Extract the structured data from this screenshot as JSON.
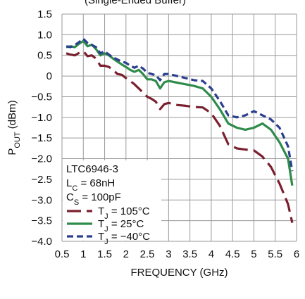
{
  "chart_data": {
    "type": "line",
    "title_partial": "(Single-Ended Buffer)",
    "xlabel": "FREQUENCY (GHz)",
    "ylabel": {
      "main": "P",
      "sub": "OUT",
      "rest": " (dBm)"
    },
    "xlim": [
      0.5,
      6.0
    ],
    "ylim": [
      -4.0,
      1.5
    ],
    "x_ticks": [
      "0.5",
      "1",
      "1.5",
      "2",
      "2.5",
      "3",
      "3.5",
      "4",
      "4.5",
      "5",
      "5.5",
      "6"
    ],
    "y_ticks": [
      "1.5",
      "1.0",
      "0.5",
      "0",
      "−0.5",
      "−1.0",
      "−1.5",
      "−2.0",
      "−2.5",
      "−3.0",
      "−3.5",
      "−4.0"
    ],
    "grid": true,
    "legend_position": "bottom-left",
    "conditions": [
      {
        "main": "LTC6946-3",
        "sub": "",
        "rest": ""
      },
      {
        "main": "L",
        "sub": "C",
        "rest": " = 68nH"
      },
      {
        "main": "C",
        "sub": "S",
        "rest": " = 100pF"
      }
    ],
    "series": [
      {
        "name": "T_J = 105°C",
        "label": {
          "main": "T",
          "sub": "J",
          "rest": " = 105°C"
        },
        "color": "#7a1f2e",
        "dash": "long-dash",
        "x": [
          0.6,
          0.7,
          0.8,
          0.9,
          1.0,
          1.1,
          1.2,
          1.3,
          1.4,
          1.5,
          1.6,
          1.7,
          1.8,
          1.9,
          2.0,
          2.1,
          2.2,
          2.3,
          2.4,
          2.5,
          2.6,
          2.7,
          2.8,
          2.9,
          3.0,
          3.2,
          3.4,
          3.6,
          3.8,
          4.0,
          4.2,
          4.4,
          4.6,
          4.8,
          5.0,
          5.2,
          5.4,
          5.6,
          5.8,
          5.9
        ],
        "values": [
          0.55,
          0.52,
          0.5,
          0.56,
          0.6,
          0.48,
          0.5,
          0.42,
          0.25,
          0.25,
          0.22,
          0.15,
          0.05,
          0.03,
          -0.05,
          -0.12,
          -0.2,
          -0.3,
          -0.4,
          -0.5,
          -0.55,
          -0.62,
          -0.8,
          -0.68,
          -0.65,
          -0.7,
          -0.72,
          -0.75,
          -0.76,
          -0.9,
          -1.2,
          -1.65,
          -1.75,
          -1.78,
          -1.8,
          -1.95,
          -2.2,
          -2.6,
          -3.1,
          -3.55
        ]
      },
      {
        "name": "T_J = 25°C",
        "label": {
          "main": "T",
          "sub": "J",
          "rest": " = 25°C"
        },
        "color": "#2e8b4a",
        "dash": "solid",
        "x": [
          0.6,
          0.7,
          0.8,
          0.9,
          1.0,
          1.1,
          1.2,
          1.3,
          1.4,
          1.5,
          1.6,
          1.7,
          1.8,
          1.9,
          2.0,
          2.1,
          2.2,
          2.3,
          2.4,
          2.5,
          2.6,
          2.7,
          2.8,
          2.9,
          3.0,
          3.2,
          3.4,
          3.6,
          3.8,
          4.0,
          4.2,
          4.4,
          4.6,
          4.8,
          5.0,
          5.2,
          5.4,
          5.6,
          5.8,
          5.9
        ],
        "values": [
          0.7,
          0.72,
          0.7,
          0.78,
          0.85,
          0.72,
          0.76,
          0.65,
          0.5,
          0.55,
          0.5,
          0.42,
          0.35,
          0.28,
          0.22,
          0.15,
          0.1,
          0.15,
          0.05,
          -0.08,
          -0.08,
          -0.12,
          -0.3,
          -0.15,
          -0.12,
          -0.16,
          -0.2,
          -0.24,
          -0.3,
          -0.5,
          -0.8,
          -1.15,
          -1.25,
          -1.3,
          -1.25,
          -1.15,
          -1.3,
          -1.6,
          -2.0,
          -2.65
        ]
      },
      {
        "name": "T_J = −40°C",
        "label": {
          "main": "T",
          "sub": "J",
          "rest": " = −40°C"
        },
        "color": "#2b3f8f",
        "dash": "short-dash",
        "x": [
          0.6,
          0.7,
          0.8,
          0.9,
          1.0,
          1.1,
          1.2,
          1.3,
          1.4,
          1.5,
          1.6,
          1.7,
          1.8,
          1.9,
          2.0,
          2.1,
          2.2,
          2.3,
          2.4,
          2.5,
          2.6,
          2.7,
          2.8,
          2.9,
          3.0,
          3.2,
          3.4,
          3.6,
          3.8,
          4.0,
          4.2,
          4.4,
          4.6,
          4.8,
          5.0,
          5.2,
          5.4,
          5.6,
          5.8,
          5.9
        ],
        "values": [
          0.72,
          0.7,
          0.75,
          0.82,
          0.9,
          0.8,
          0.75,
          0.7,
          0.55,
          0.6,
          0.52,
          0.45,
          0.4,
          0.35,
          0.32,
          0.25,
          0.2,
          0.25,
          0.18,
          0.08,
          0.05,
          0.02,
          -0.1,
          0.05,
          0.05,
          0.0,
          -0.05,
          -0.1,
          -0.12,
          -0.3,
          -0.6,
          -0.95,
          -1.0,
          -0.95,
          -0.85,
          -0.95,
          -1.05,
          -1.25,
          -1.7,
          -2.3
        ]
      }
    ]
  }
}
